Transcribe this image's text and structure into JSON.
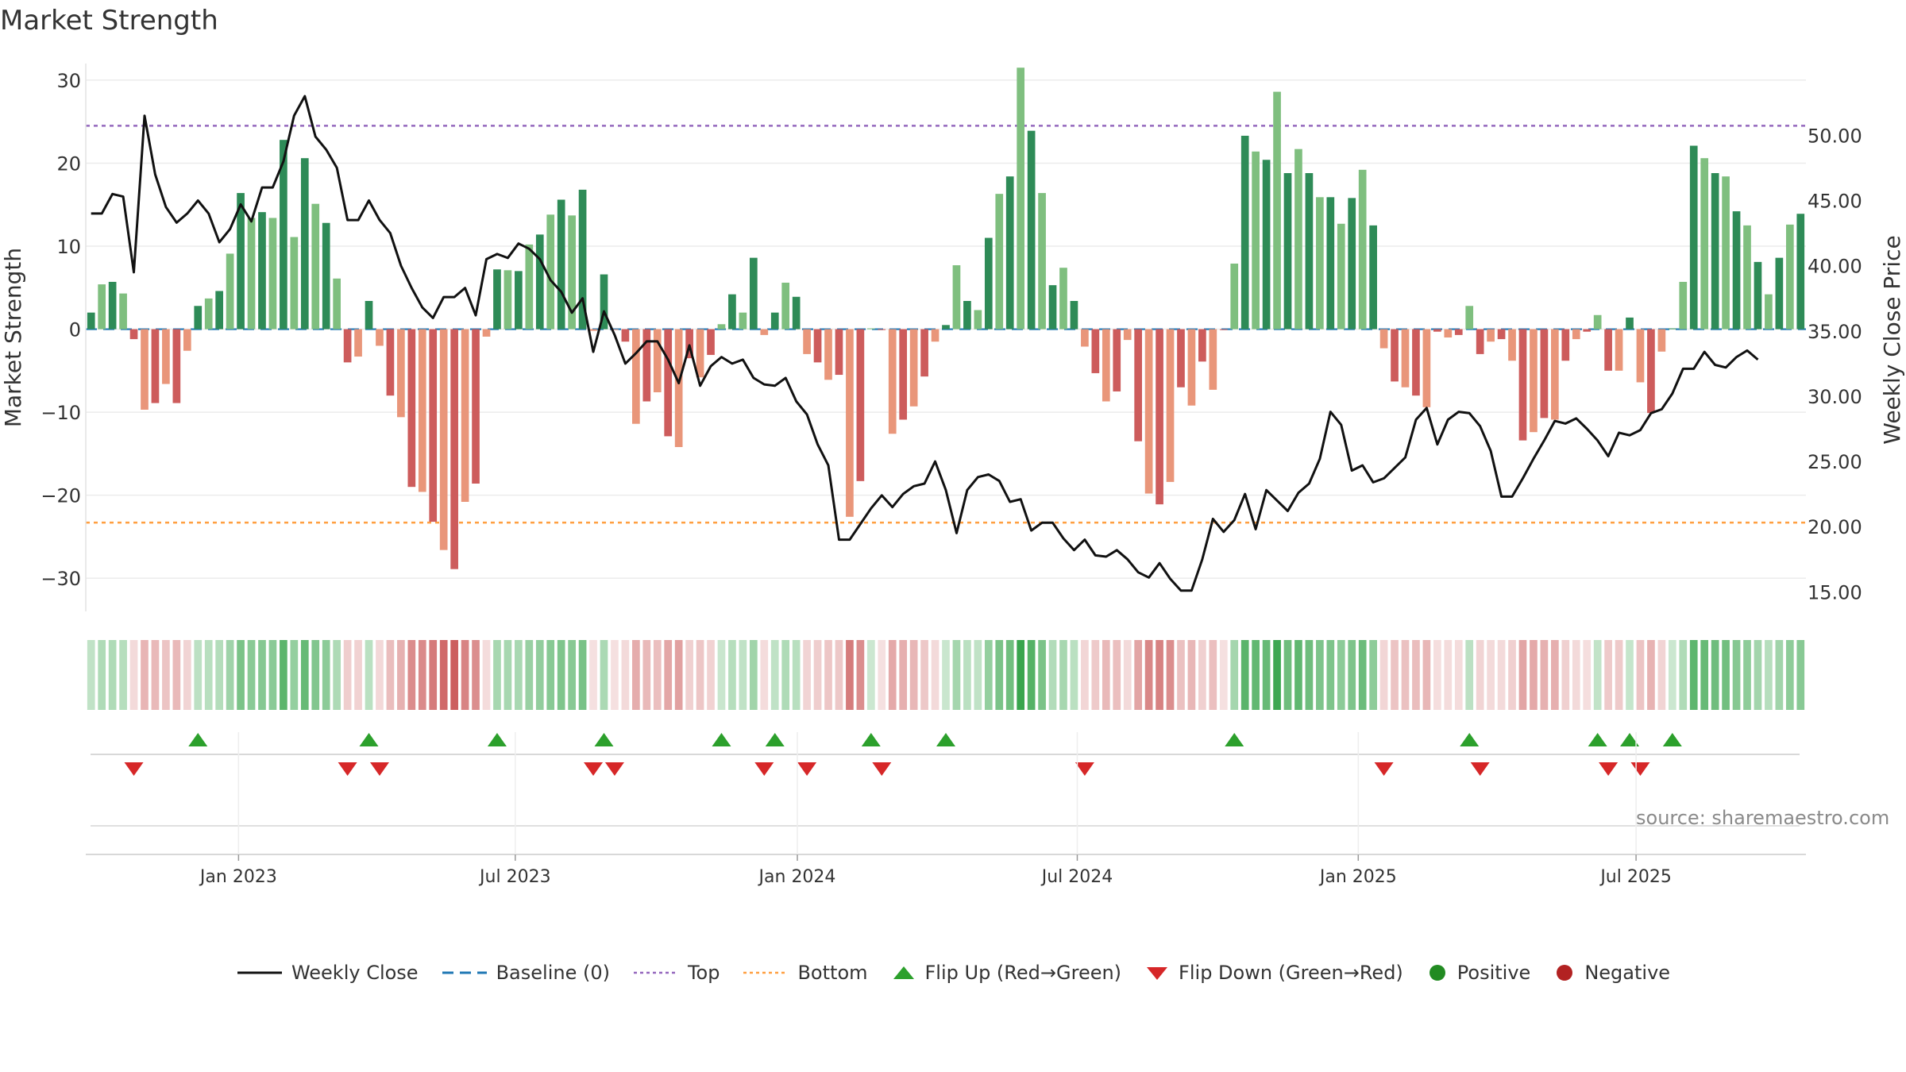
{
  "title": "Market Strength",
  "source": "source: sharemaestro.com",
  "legend": {
    "close": "Weekly Close",
    "baseline": "Baseline (0)",
    "top": "Top",
    "bottom": "Bottom",
    "flip_up": "Flip Up (Red→Green)",
    "flip_down": "Flip Down (Green→Red)",
    "positive": "Positive",
    "negative": "Negative"
  },
  "colors": {
    "pos_dark": "#2e8b57",
    "pos_light": "#7fbf7f",
    "neg_dark": "#cd5c5c",
    "neg_light": "#e9967a",
    "close_line": "#111111",
    "baseline": "#1f77b4",
    "top": "#9467bd",
    "bottom": "#ff9f40",
    "flip_up": "#2ca02c",
    "flip_down": "#d62728",
    "positive_dot": "#228b22",
    "negative_dot": "#b22222"
  },
  "chart_data": {
    "type": "bar",
    "title": "Market Strength",
    "ylabel": "Market Strength",
    "y2label": "Weekly Close Price",
    "ylim": [
      -34,
      32
    ],
    "y2lim": [
      13.5,
      55.5
    ],
    "yticks": [
      30,
      20,
      10,
      0,
      -10,
      -20,
      -30
    ],
    "ytick_labels": [
      "30",
      "20",
      "10",
      "0",
      "−10",
      "−20",
      "−30"
    ],
    "y2ticks": [
      50,
      45,
      40,
      35,
      30,
      25,
      20,
      15
    ],
    "y2tick_labels": [
      "50.00",
      "45.00",
      "40.00",
      "35.00",
      "30.00",
      "25.00",
      "20.00",
      "15.00"
    ],
    "top_level": 24.5,
    "bottom_level": -23.3,
    "x_start_index": 0,
    "xtick_labels": [
      "Jan 2023",
      "Jul 2023",
      "Jan 2024",
      "Jul 2024",
      "Jan 2025",
      "Jul 2025"
    ],
    "xtick_weeks": [
      14.3,
      40.2,
      66.6,
      92.8,
      119.1,
      145.1
    ],
    "strength": [
      2,
      5.4,
      5.7,
      4.3,
      -1.2,
      -9.7,
      -8.9,
      -6.6,
      -8.9,
      -2.6,
      2.8,
      3.7,
      4.6,
      9.1,
      16.4,
      13.4,
      14.1,
      13.4,
      22.8,
      11.1,
      20.6,
      15.1,
      12.8,
      6.1,
      -4,
      -3.3,
      3.4,
      -2,
      -8,
      -10.6,
      -19,
      -19.6,
      -23.2,
      -26.6,
      -28.9,
      -20.8,
      -18.6,
      -0.9,
      7.2,
      7.1,
      7,
      10.2,
      11.4,
      13.8,
      15.6,
      13.7,
      16.8,
      -0.2,
      6.6,
      -0.1,
      -1.5,
      -11.4,
      -8.7,
      -7.6,
      -12.9,
      -14.2,
      -3.5,
      -5.8,
      -3.1,
      0.6,
      4.2,
      2,
      8.6,
      -0.7,
      2,
      5.6,
      3.9,
      -3,
      -4,
      -6.1,
      -5.5,
      -22.6,
      -18.3,
      0.1,
      -0.1,
      -12.6,
      -10.9,
      -9.3,
      -5.7,
      -1.5,
      0.5,
      7.7,
      3.4,
      2.3,
      11,
      16.3,
      18.4,
      31.5,
      23.9,
      16.4,
      5.3,
      7.4,
      3.4,
      -2.1,
      -5.3,
      -8.7,
      -7.5,
      -1.3,
      -13.5,
      -19.8,
      -21.1,
      -18.4,
      -7,
      -9.2,
      -3.9,
      -7.3,
      -0.1,
      7.9,
      23.3,
      21.4,
      20.4,
      28.6,
      18.8,
      21.7,
      18.8,
      15.9,
      15.9,
      12.7,
      15.8,
      19.2,
      12.5,
      -2.3,
      -6.3,
      -7,
      -8,
      -9.4,
      -0.3,
      -1,
      -0.7,
      2.8,
      -3,
      -1.5,
      -1.2,
      -3.8,
      -13.4,
      -12.4,
      -10.7,
      -10.9,
      -3.8,
      -1.2,
      -0.3,
      1.7,
      -5,
      -5,
      1.4,
      -6.4,
      -10.1,
      -2.7,
      0.1,
      5.7,
      22.1,
      20.6,
      18.8,
      18.4,
      14.2,
      12.5,
      8.1,
      4.2,
      8.6,
      12.6,
      13.9
    ],
    "close": [
      44,
      44,
      45.5,
      45.3,
      39.5,
      51.5,
      47,
      44.5,
      43.3,
      44,
      45,
      44,
      41.8,
      42.8,
      44.7,
      43.4,
      46,
      46,
      48,
      51.5,
      53,
      49.9,
      48.9,
      47.5,
      43.5,
      43.5,
      45,
      43.5,
      42.5,
      40,
      38.3,
      36.8,
      36,
      37.6,
      37.6,
      38.3,
      36.2,
      40.5,
      40.9,
      40.6,
      41.7,
      41.3,
      40.5,
      38.9,
      38,
      36.4,
      37.5,
      33.4,
      36.5,
      34.7,
      32.5,
      33.3,
      34.2,
      34.2,
      32.8,
      31,
      33.9,
      30.8,
      32.3,
      33,
      32.5,
      32.8,
      31.4,
      30.9,
      30.8,
      31.4,
      29.6,
      28.6,
      26.3,
      24.7,
      19,
      19,
      20.2,
      21.4,
      22.4,
      21.5,
      22.5,
      23.1,
      23.3,
      25,
      22.8,
      19.5,
      22.8,
      23.8,
      24,
      23.5,
      21.9,
      22.1,
      19.7,
      20.3,
      20.3,
      19.1,
      18.2,
      19,
      17.8,
      17.7,
      18.2,
      17.5,
      16.5,
      16.1,
      17.2,
      16,
      15.1,
      15.1,
      17.5,
      20.6,
      19.6,
      20.5,
      22.5,
      19.8,
      22.8,
      22,
      21.2,
      22.6,
      23.3,
      25.2,
      28.8,
      27.8,
      24.3,
      24.7,
      23.4,
      23.7,
      24.5,
      25.3,
      28.2,
      29.1,
      26.3,
      28.2,
      28.8,
      28.7,
      27.7,
      25.8,
      22.3,
      22.3,
      23.7,
      25.2,
      26.6,
      28.1,
      27.9,
      28.3,
      27.5,
      26.6,
      25.4,
      27.2,
      27,
      27.4,
      28.7,
      29,
      30.2,
      32.1,
      32.1,
      33.4,
      32.4,
      32.2,
      33,
      33.5,
      32.8
    ]
  }
}
